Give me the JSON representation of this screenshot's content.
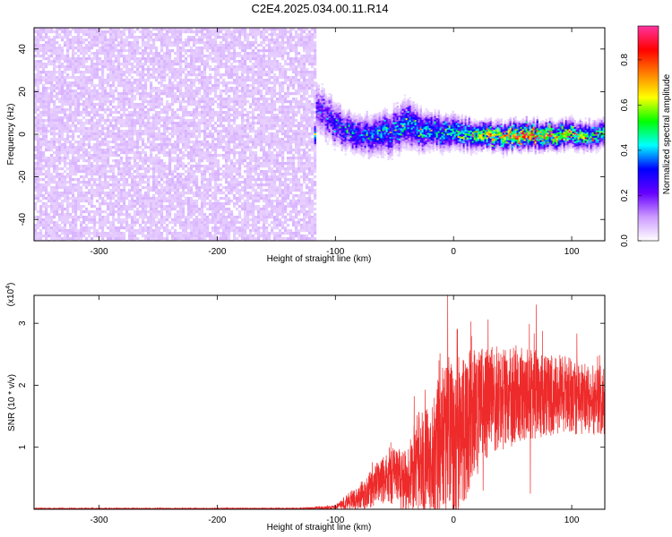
{
  "title": "C2E4.2025.034.00.11.R14",
  "chart_data": [
    {
      "type": "heatmap",
      "xlabel": "Height of straight line (km)",
      "ylabel": "Frequency (Hz)",
      "xlim": [
        -355,
        128
      ],
      "ylim": [
        -50,
        50
      ],
      "x_ticks": [
        -300,
        -200,
        -100,
        0,
        100
      ],
      "x_tick_labels": [
        "-300",
        "-200",
        "-100",
        "0",
        "100"
      ],
      "y_ticks": [
        -40,
        -20,
        0,
        20,
        40
      ],
      "y_tick_labels": [
        "-40",
        "-20",
        "0",
        "20",
        "40"
      ],
      "noise_region_x": [
        -355,
        -118
      ],
      "signal_profile": [
        {
          "x": -118,
          "center": 13,
          "halfwidth": 10,
          "amplitude": 0.18
        },
        {
          "x": -110,
          "center": 10,
          "halfwidth": 9,
          "amplitude": 0.22
        },
        {
          "x": -100,
          "center": 5,
          "halfwidth": 8,
          "amplitude": 0.28
        },
        {
          "x": -90,
          "center": 2,
          "halfwidth": 7,
          "amplitude": 0.32
        },
        {
          "x": -75,
          "center": 0,
          "halfwidth": 7,
          "amplitude": 0.34
        },
        {
          "x": -55,
          "center": 1,
          "halfwidth": 8,
          "amplitude": 0.36
        },
        {
          "x": -40,
          "center": 5,
          "halfwidth": 9,
          "amplitude": 0.36
        },
        {
          "x": -25,
          "center": 2,
          "halfwidth": 7,
          "amplitude": 0.38
        },
        {
          "x": 0,
          "center": 1,
          "halfwidth": 6,
          "amplitude": 0.42
        },
        {
          "x": 20,
          "center": 0,
          "halfwidth": 5,
          "amplitude": 0.55
        },
        {
          "x": 40,
          "center": -1,
          "halfwidth": 5,
          "amplitude": 0.65
        },
        {
          "x": 60,
          "center": 0,
          "halfwidth": 5,
          "amplitude": 0.75
        },
        {
          "x": 80,
          "center": 0,
          "halfwidth": 5,
          "amplitude": 0.65
        },
        {
          "x": 100,
          "center": 0,
          "halfwidth": 5,
          "amplitude": 0.55
        },
        {
          "x": 128,
          "center": 0,
          "halfwidth": 5,
          "amplitude": 0.45
        }
      ],
      "colorbar": {
        "label": "Normalized spectral amplitude",
        "range": [
          0,
          0.95
        ],
        "ticks": [
          0.0,
          0.2,
          0.4,
          0.6,
          0.8
        ],
        "tick_labels": [
          "0.0",
          "0.2",
          "0.4",
          "0.6",
          "0.8"
        ],
        "colors": [
          "#ffffff",
          "#cc99ff",
          "#6600ff",
          "#0000ff",
          "#00ffff",
          "#00ff00",
          "#ffff00",
          "#ff8000",
          "#ff0000",
          "#ff33a0"
        ]
      },
      "grid": false
    },
    {
      "type": "line",
      "xlabel": "Height of straight line (km)",
      "ylabel": "SNR (10 * v/v)",
      "y_multiplier": "(x10",
      "y_multiplier_exp": "4",
      "y_multiplier_close": ")",
      "xlim": [
        -355,
        128
      ],
      "ylim": [
        0,
        3.45
      ],
      "x_ticks": [
        -300,
        -200,
        -100,
        0,
        100
      ],
      "x_tick_labels": [
        "-300",
        "-200",
        "-100",
        "0",
        "100"
      ],
      "y_ticks": [
        1,
        2,
        3
      ],
      "y_tick_labels": [
        "1",
        "2",
        "3"
      ],
      "series_color": "#ee2a2a",
      "envelope": [
        {
          "x": -355,
          "base": 0.01,
          "spread": 0.01
        },
        {
          "x": -130,
          "base": 0.01,
          "spread": 0.01
        },
        {
          "x": -100,
          "base": 0.03,
          "spread": 0.04
        },
        {
          "x": -75,
          "base": 0.25,
          "spread": 0.25
        },
        {
          "x": -55,
          "base": 0.55,
          "spread": 0.45
        },
        {
          "x": -40,
          "base": 0.45,
          "spread": 0.5
        },
        {
          "x": -30,
          "base": 0.8,
          "spread": 0.8
        },
        {
          "x": -20,
          "base": 0.7,
          "spread": 0.9
        },
        {
          "x": -10,
          "base": 1.1,
          "spread": 1.2
        },
        {
          "x": 0,
          "base": 1.0,
          "spread": 1.4
        },
        {
          "x": 15,
          "base": 1.5,
          "spread": 1.1
        },
        {
          "x": 30,
          "base": 1.75,
          "spread": 0.9
        },
        {
          "x": 60,
          "base": 1.85,
          "spread": 0.75
        },
        {
          "x": 90,
          "base": 1.85,
          "spread": 0.65
        },
        {
          "x": 128,
          "base": 1.75,
          "spread": 0.55
        }
      ],
      "peaks": [
        {
          "x": -5,
          "y": 3.45
        },
        {
          "x": 3,
          "y": 2.9
        },
        {
          "x": 70,
          "y": 3.3
        },
        {
          "x": 25,
          "y": 0.3
        },
        {
          "x": 65,
          "y": 0.25
        }
      ],
      "grid": false
    }
  ]
}
